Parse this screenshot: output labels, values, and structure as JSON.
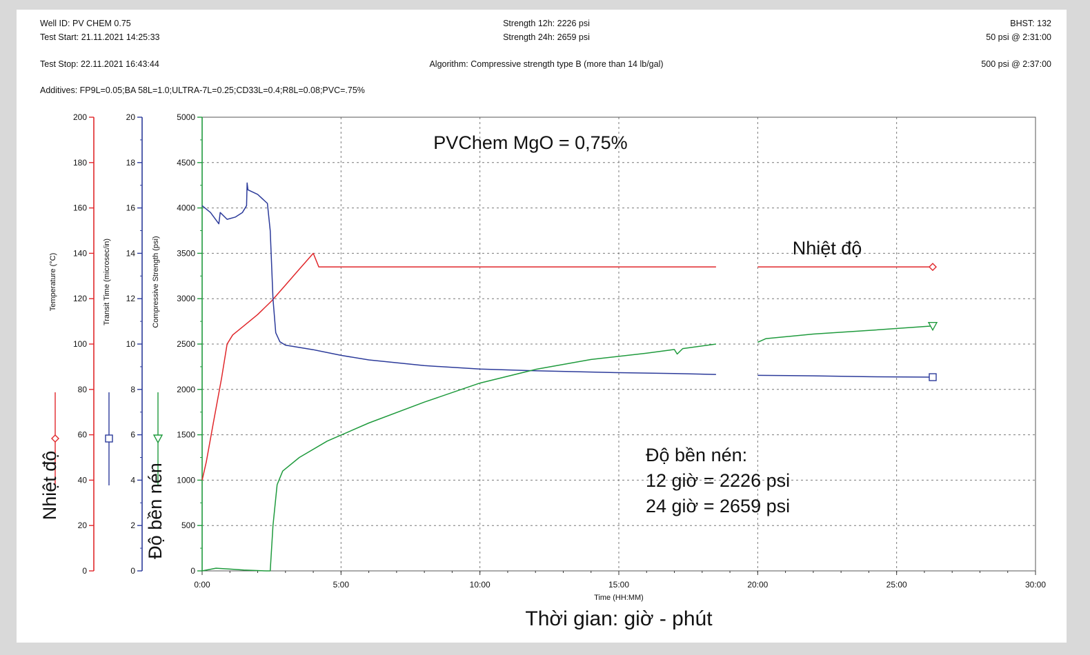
{
  "header": {
    "well_id": "Well ID: PV CHEM 0.75",
    "test_start": "Test Start: 21.11.2021 14:25:33",
    "test_stop": "Test Stop: 22.11.2021 16:43:44",
    "additives": "Additives: FP9L=0.05;BA 58L=1.0;ULTRA-7L=0.25;CD33L=0.4;R8L=0.08;PVC=.75%",
    "strength_12h": "Strength 12h: 2226 psi",
    "strength_24h": "Strength 24h: 2659 psi",
    "algorithm": "Algorithm: Compressive strength type B (more than 14 lb/gal)",
    "bhst": "BHST: 132",
    "psi50": "50 psi @ 2:31:00",
    "psi500": "500 psi @ 2:37:00"
  },
  "annotations": {
    "title": "PVChem MgO = 0,75%",
    "temp_label": "Nhiệt độ",
    "strength_title": "Độ bền nén:",
    "strength_12": "12 giờ = 2226 psi",
    "strength_24": "24 giờ = 2659 psi",
    "left_temp": "Nhiệt độ",
    "left_strength": "Độ bền nén",
    "x_vn": "Thời gian: giờ - phút"
  },
  "chart_data": {
    "type": "line",
    "xlabel": "Time (HH:MM)",
    "x_ticks": [
      "0:00",
      "5:00",
      "10:00",
      "15:00",
      "20:00",
      "25:00",
      "30:00"
    ],
    "xlim_hours": [
      0,
      30
    ],
    "grid": true,
    "axes": {
      "temperature": {
        "label": "Temperature (°C)",
        "ylim": [
          0,
          200
        ],
        "ticks": [
          0,
          20,
          40,
          60,
          80,
          100,
          120,
          140,
          160,
          180,
          200
        ],
        "color": "#e0262a"
      },
      "transit": {
        "label": "Transit Time (microsec/in)",
        "ylim": [
          0,
          20
        ],
        "ticks": [
          0,
          2,
          4,
          6,
          8,
          10,
          12,
          14,
          16,
          18,
          20
        ],
        "color": "#2b3a9a"
      },
      "strength": {
        "label": "Compressive Strength (psi)",
        "ylim": [
          0,
          5000
        ],
        "ticks": [
          0,
          500,
          1000,
          1500,
          2000,
          2500,
          3000,
          3500,
          4000,
          4500,
          5000
        ],
        "color": "#1e9a3c"
      }
    },
    "series": [
      {
        "name": "Temperature (°C)",
        "axis": "temperature",
        "color": "#e0262a",
        "marker": "diamond",
        "segments": [
          [
            [
              0,
              40
            ],
            [
              0.15,
              48
            ],
            [
              0.4,
              65
            ],
            [
              0.7,
              85
            ],
            [
              0.9,
              100
            ],
            [
              1.1,
              104
            ],
            [
              1.5,
              108
            ],
            [
              2.0,
              113
            ],
            [
              2.5,
              119
            ],
            [
              3.0,
              126
            ],
            [
              3.5,
              133
            ],
            [
              4.0,
              140
            ],
            [
              4.2,
              134
            ],
            [
              6,
              134
            ],
            [
              10,
              134
            ],
            [
              15,
              134
            ],
            [
              18.5,
              134
            ]
          ],
          [
            [
              20,
              134
            ],
            [
              22,
              134
            ],
            [
              24,
              134
            ],
            [
              26.3,
              134
            ]
          ]
        ]
      },
      {
        "name": "Transit Time (microsec/in)",
        "axis": "transit",
        "color": "#2b3a9a",
        "marker": "square",
        "segments": [
          [
            [
              0,
              16.1
            ],
            [
              0.3,
              15.8
            ],
            [
              0.6,
              15.3
            ],
            [
              0.65,
              15.8
            ],
            [
              0.9,
              15.5
            ],
            [
              1.2,
              15.6
            ],
            [
              1.45,
              15.8
            ],
            [
              1.6,
              16.1
            ],
            [
              1.62,
              17.1
            ],
            [
              1.65,
              16.8
            ],
            [
              2.0,
              16.6
            ],
            [
              2.35,
              16.2
            ],
            [
              2.45,
              15.0
            ],
            [
              2.55,
              12.0
            ],
            [
              2.65,
              10.5
            ],
            [
              2.8,
              10.1
            ],
            [
              3.0,
              9.95
            ],
            [
              4.0,
              9.75
            ],
            [
              5.0,
              9.5
            ],
            [
              6.0,
              9.3
            ],
            [
              8.0,
              9.05
            ],
            [
              10.0,
              8.9
            ],
            [
              12.0,
              8.82
            ],
            [
              15.0,
              8.74
            ],
            [
              17.0,
              8.7
            ],
            [
              18.5,
              8.66
            ]
          ],
          [
            [
              20,
              8.62
            ],
            [
              22,
              8.6
            ],
            [
              24,
              8.56
            ],
            [
              26.3,
              8.54
            ]
          ]
        ]
      },
      {
        "name": "Compressive Strength (psi)",
        "axis": "strength",
        "color": "#1e9a3c",
        "marker": "triangle-down",
        "segments": [
          [
            [
              0,
              0
            ],
            [
              0.5,
              30
            ],
            [
              1.0,
              20
            ],
            [
              1.5,
              10
            ],
            [
              2.3,
              0
            ],
            [
              2.45,
              0
            ],
            [
              2.55,
              500
            ],
            [
              2.7,
              950
            ],
            [
              2.9,
              1100
            ],
            [
              3.5,
              1250
            ],
            [
              4.5,
              1430
            ],
            [
              6.0,
              1630
            ],
            [
              8.0,
              1860
            ],
            [
              10.0,
              2070
            ],
            [
              12.0,
              2220
            ],
            [
              14.0,
              2330
            ],
            [
              16.0,
              2400
            ],
            [
              17.0,
              2440
            ],
            [
              17.1,
              2390
            ],
            [
              17.3,
              2450
            ],
            [
              18.5,
              2500
            ]
          ],
          [
            [
              20,
              2520
            ],
            [
              20.3,
              2560
            ],
            [
              22,
              2610
            ],
            [
              24,
              2650
            ],
            [
              26.3,
              2700
            ]
          ]
        ]
      }
    ]
  }
}
